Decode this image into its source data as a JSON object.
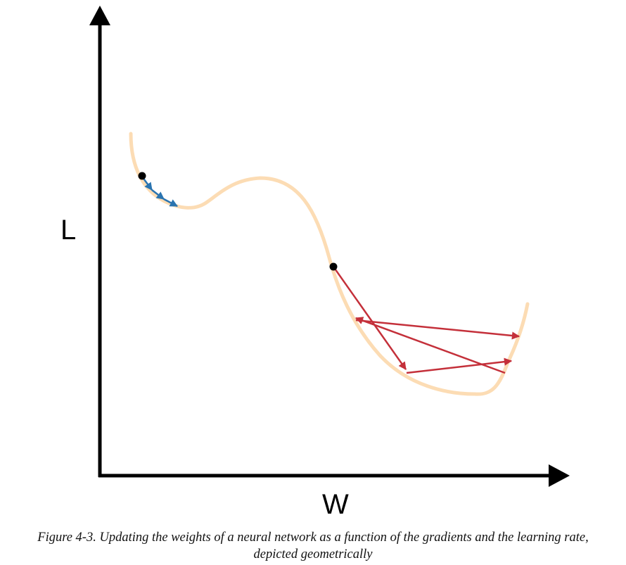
{
  "diagram": {
    "y_axis_label": "L",
    "x_axis_label": "W",
    "colors": {
      "axis": "#000000",
      "loss_curve": "#fcdcb4",
      "small_step_arrows": "#2a74b0",
      "large_step_arrows": "#c4303a",
      "start_points": "#000000"
    }
  },
  "caption": {
    "line1": "Figure 4-3. Updating the weights of a neural network as a function of the gradients and the learning rate,",
    "line2": "depicted geometrically"
  }
}
